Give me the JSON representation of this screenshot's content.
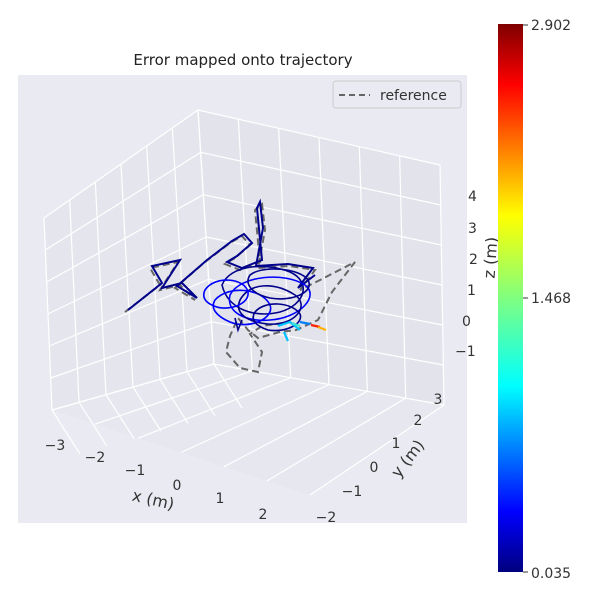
{
  "chart_data": {
    "type": "line",
    "projection": "3d",
    "title": "Error mapped onto trajectory",
    "xlabel": "x (m)",
    "ylabel": "y (m)",
    "zlabel": "z (m)",
    "x_ticks": [
      "−3",
      "−2",
      "−1",
      "0",
      "1",
      "2"
    ],
    "y_ticks": [
      "−2",
      "−1",
      "0",
      "1",
      "2",
      "3"
    ],
    "z_ticks": [
      "−1",
      "0",
      "1",
      "2",
      "3",
      "4"
    ],
    "legend": {
      "entries": [
        "reference"
      ],
      "placement": "top-right"
    },
    "colorbar": {
      "colormap": "jet",
      "min": 0.035,
      "max": 2.902,
      "tick_labels": [
        "2.902",
        "1.468",
        "0.035"
      ]
    },
    "grid": true,
    "series": [
      {
        "name": "reference",
        "style": "dashed",
        "color": "#666666"
      }
    ],
    "trajectory_error_range": [
      0.035,
      2.902
    ],
    "colors": {
      "background": "#eaeaf2",
      "grid": "#ffffff",
      "reference": "#666666",
      "trajectory_low": "#00008b",
      "trajectory_mid": "#0000ff"
    }
  }
}
